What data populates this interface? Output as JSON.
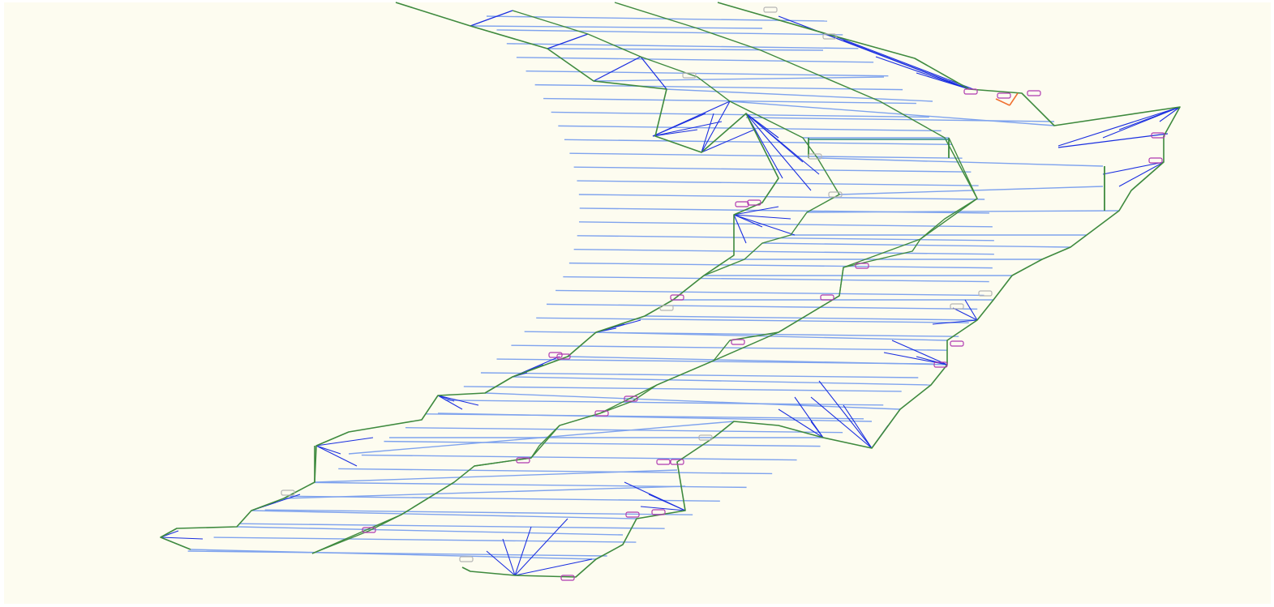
{
  "viewer": {
    "background_color": "#fdfcf0",
    "colors": {
      "edge_outer": "#3e8a3e",
      "edge_blue_light": "#7fa3ee",
      "edge_blue_dark": "#1a2ee0",
      "marker_magenta": "#b03ab0",
      "marker_grey": "#b5b5b5",
      "accent_orange": "#f07030"
    }
  }
}
